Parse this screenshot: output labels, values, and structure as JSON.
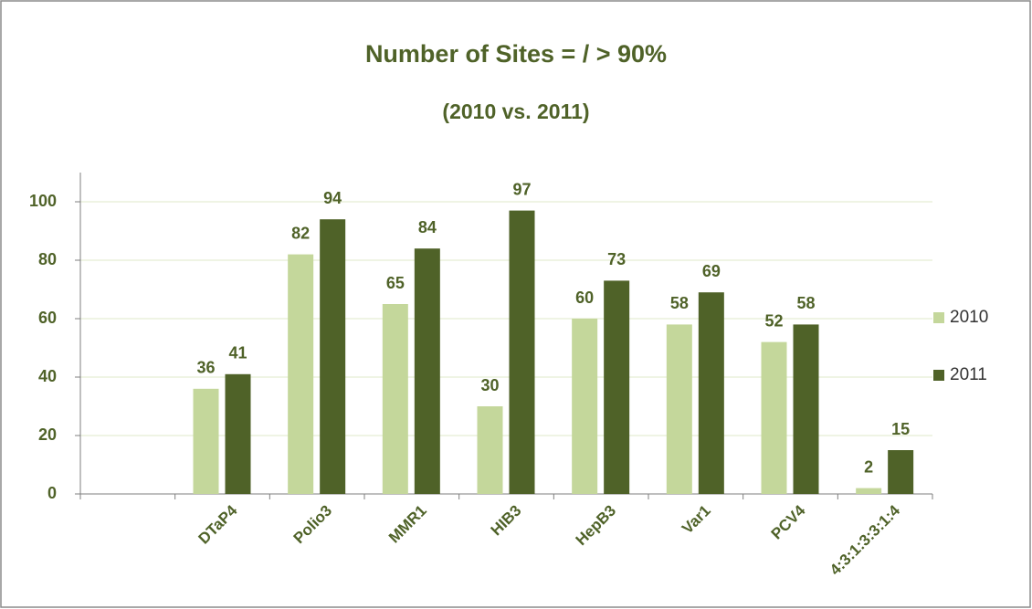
{
  "chart_data": {
    "type": "bar",
    "title": "Number of Sites = / > 90%",
    "subtitle": "(2010 vs. 2011)",
    "categories": [
      null,
      "DTaP4",
      "Polio3",
      "MMR1",
      "HIB3",
      "HepB3",
      "Var1",
      "PCV4",
      "4:3:1:3:3:1:4"
    ],
    "series": [
      {
        "name": "2010",
        "color": "#c4d79b",
        "values": [
          null,
          36,
          82,
          65,
          30,
          60,
          58,
          52,
          2
        ]
      },
      {
        "name": "2011",
        "color": "#4f6228",
        "values": [
          null,
          41,
          94,
          84,
          97,
          73,
          69,
          58,
          15
        ]
      }
    ],
    "ylim": [
      0,
      110
    ],
    "yticks": [
      0,
      20,
      40,
      60,
      80,
      100
    ],
    "grid": true,
    "legend": "right"
  }
}
